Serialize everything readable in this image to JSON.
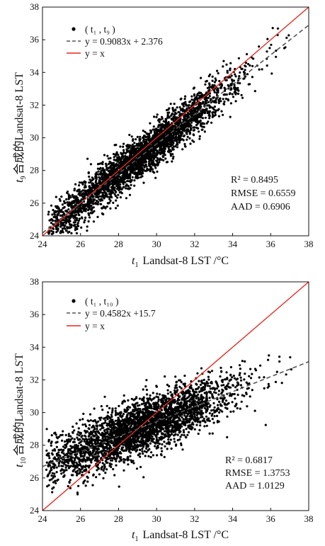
{
  "chart_data": [
    {
      "type": "scatter",
      "x_range": [
        24,
        38
      ],
      "y_range": [
        24,
        38
      ],
      "x_ticks": [
        "24",
        "26",
        "28",
        "30",
        "32",
        "34",
        "36",
        "38"
      ],
      "y_ticks": [
        "24",
        "26",
        "28",
        "30",
        "32",
        "34",
        "36",
        "38"
      ],
      "xlabel_sub": "1",
      "xlabel_main": "Landsat-8 LST  /°C",
      "ylabel_sub": "9",
      "ylabel_main": "合成的Landsat-8 LST",
      "legend": {
        "points": "( t₁ , t₉ )",
        "fit": "y = 0.9083x + 2.376",
        "identity": "y = x"
      },
      "fit": {
        "slope": 0.9083,
        "intercept": 2.376
      },
      "stats": {
        "r2": "R² = 0.8495",
        "rmse": "RMSE = 0.6559",
        "aad": "AAD = 0.6906"
      },
      "colors": {
        "points": "#000000",
        "fit": "#555555",
        "identity": "#e8261f"
      },
      "point_cloud": {
        "x_min": 24.3,
        "x_max": 37.0,
        "spread": 0.66
      }
    },
    {
      "type": "scatter",
      "x_range": [
        24,
        38
      ],
      "y_range": [
        24,
        38
      ],
      "x_ticks": [
        "24",
        "26",
        "28",
        "30",
        "32",
        "34",
        "36",
        "38"
      ],
      "y_ticks": [
        "24",
        "26",
        "28",
        "30",
        "32",
        "34",
        "36",
        "38"
      ],
      "xlabel_sub": "1",
      "xlabel_main": "Landsat-8 LST  /°C",
      "ylabel_sub": "10",
      "ylabel_main": "合成的Landsat-8 LST",
      "legend": {
        "points": "( t₁ , t₁₀ )",
        "fit": "y = 0.4582x +15.7",
        "identity": "y = x"
      },
      "fit": {
        "slope": 0.4582,
        "intercept": 15.7
      },
      "stats": {
        "r2": "R² = 0.6817",
        "rmse": "RMSE = 1.3753",
        "aad": "AAD = 1.0129"
      },
      "colors": {
        "points": "#000000",
        "fit": "#555555",
        "identity": "#e8261f"
      },
      "point_cloud": {
        "x_min": 24.2,
        "x_max": 37.3,
        "spread": 0.85
      }
    }
  ]
}
